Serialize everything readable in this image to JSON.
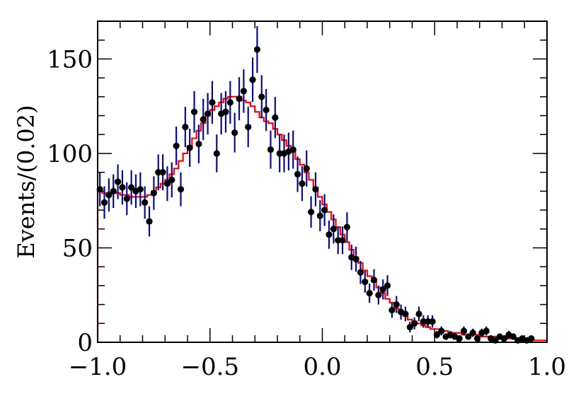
{
  "chart_data": {
    "type": "scatter",
    "title": "",
    "xlabel": "",
    "ylabel": "Events/(0.02)",
    "xlim": [
      -1.0,
      1.0
    ],
    "ylim": [
      0,
      170
    ],
    "x_ticks": [
      "−1.0",
      "−0.5",
      "0.0",
      "0.5",
      "1.0"
    ],
    "x_tick_values": [
      -1.0,
      -0.5,
      0.0,
      0.5,
      1.0
    ],
    "y_ticks": [
      "0",
      "50",
      "100",
      "150"
    ],
    "y_tick_values": [
      0,
      50,
      100,
      150
    ],
    "grid": false,
    "legend": "none",
    "bin_width": 0.02,
    "series": [
      {
        "type": "points_with_errors",
        "color": "#000000",
        "error_color": "#0a0a8c",
        "x": [
          -0.99,
          -0.97,
          -0.95,
          -0.93,
          -0.91,
          -0.89,
          -0.87,
          -0.85,
          -0.83,
          -0.81,
          -0.79,
          -0.77,
          -0.75,
          -0.73,
          -0.71,
          -0.69,
          -0.67,
          -0.65,
          -0.63,
          -0.61,
          -0.59,
          -0.57,
          -0.55,
          -0.53,
          -0.51,
          -0.49,
          -0.47,
          -0.45,
          -0.43,
          -0.41,
          -0.39,
          -0.37,
          -0.35,
          -0.33,
          -0.31,
          -0.29,
          -0.27,
          -0.25,
          -0.23,
          -0.21,
          -0.19,
          -0.17,
          -0.15,
          -0.13,
          -0.11,
          -0.09,
          -0.07,
          -0.05,
          -0.03,
          -0.01,
          0.01,
          0.03,
          0.05,
          0.07,
          0.09,
          0.11,
          0.13,
          0.15,
          0.17,
          0.19,
          0.21,
          0.23,
          0.25,
          0.27,
          0.29,
          0.31,
          0.33,
          0.35,
          0.37,
          0.39,
          0.41,
          0.43,
          0.45,
          0.47,
          0.49,
          0.51,
          0.53,
          0.55,
          0.57,
          0.59,
          0.61,
          0.63,
          0.65,
          0.67,
          0.69,
          0.71,
          0.73,
          0.75,
          0.77,
          0.79,
          0.81,
          0.83,
          0.85,
          0.87,
          0.89,
          0.91,
          0.93
        ],
        "y": [
          81,
          74,
          78,
          80,
          85,
          82,
          76,
          82,
          80,
          81,
          74,
          64,
          79,
          90,
          90,
          84,
          86,
          104,
          81,
          114,
          103,
          122,
          105,
          118,
          121,
          127,
          100,
          121,
          122,
          127,
          111,
          129,
          133,
          114,
          139,
          155,
          130,
          123,
          102,
          119,
          100,
          100,
          101,
          102,
          89,
          84,
          92,
          69,
          81,
          67,
          70,
          57,
          60,
          54,
          54,
          61,
          45,
          44,
          37,
          32,
          26,
          33,
          25,
          28,
          30,
          17,
          20,
          16,
          15,
          8,
          10,
          15,
          11,
          11,
          11,
          4,
          6,
          3,
          4,
          3,
          2,
          6,
          3,
          5,
          2,
          5,
          6,
          2,
          1,
          3,
          2,
          4,
          3,
          1,
          2,
          1,
          2
        ],
        "yerr": [
          9,
          8.6,
          8.8,
          8.9,
          9.2,
          9.1,
          8.7,
          9.1,
          8.9,
          9,
          8.6,
          8,
          8.9,
          9.5,
          9.5,
          9.2,
          9.3,
          10.2,
          9,
          10.7,
          10.1,
          11,
          10.2,
          10.9,
          11,
          11.3,
          10,
          11,
          11,
          11.3,
          10.5,
          11.4,
          11.5,
          10.7,
          11.8,
          12.4,
          11.4,
          11.1,
          10.1,
          10.9,
          10,
          10,
          10,
          10.1,
          9.4,
          9.2,
          9.6,
          8.3,
          9,
          8.2,
          8.4,
          7.5,
          7.7,
          7.3,
          7.3,
          7.8,
          6.7,
          6.6,
          6.1,
          5.7,
          5.1,
          5.7,
          5,
          5.3,
          5.5,
          4.1,
          4.5,
          4,
          3.9,
          2.8,
          3.2,
          3.9,
          3.3,
          3.3,
          3.3,
          2,
          2.4,
          1.7,
          2,
          1.7,
          1.4,
          2.4,
          1.7,
          2.2,
          1.4,
          2.2,
          2.4,
          1.4,
          1,
          1.7,
          1.4,
          2,
          1.7,
          1,
          1.4,
          1,
          1.4
        ]
      },
      {
        "type": "step",
        "color": "#ff0000",
        "bin_edges_start": -1.0,
        "bin_edges_step": 0.02,
        "values": [
          80,
          79,
          78,
          79,
          79,
          78,
          78,
          77,
          77,
          77,
          77,
          78,
          80,
          82,
          84,
          86,
          89,
          92,
          96,
          100,
          104,
          108,
          112,
          116,
          120,
          123,
          125,
          127,
          129,
          130,
          130,
          130,
          128,
          127,
          125,
          122,
          119,
          117,
          116,
          113,
          110,
          107,
          104,
          101,
          97,
          94,
          90,
          86,
          82,
          77,
          73,
          69,
          65,
          61,
          57,
          53,
          49,
          45,
          42,
          38,
          35,
          32,
          29,
          26,
          23,
          21,
          18,
          16,
          14,
          12,
          11,
          10,
          9,
          8,
          7,
          7,
          6,
          6,
          5,
          5,
          5,
          4,
          4,
          4,
          4,
          3,
          3,
          3,
          3,
          3,
          3,
          2,
          2,
          2,
          2,
          2,
          2,
          1,
          1,
          1
        ]
      }
    ]
  }
}
